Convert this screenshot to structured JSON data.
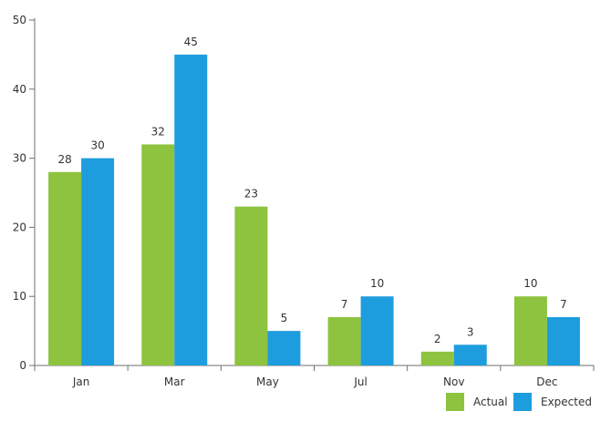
{
  "chart_data": {
    "type": "bar",
    "title": "",
    "xlabel": "",
    "ylabel": "",
    "categories": [
      "Jan",
      "Mar",
      "May",
      "Jul",
      "Nov",
      "Dec"
    ],
    "series": [
      {
        "name": "Actual",
        "values": [
          28,
          32,
          23,
          7,
          2,
          10
        ],
        "color": "#8DC33F"
      },
      {
        "name": "Expected",
        "values": [
          30,
          45,
          5,
          10,
          3,
          7
        ],
        "color": "#1E9DDE"
      }
    ],
    "ylim": [
      0,
      50
    ],
    "yticks": [
      0,
      10,
      20,
      30,
      40,
      50
    ],
    "grid": false,
    "data_labels": true,
    "legend_position": "bottom-right"
  }
}
